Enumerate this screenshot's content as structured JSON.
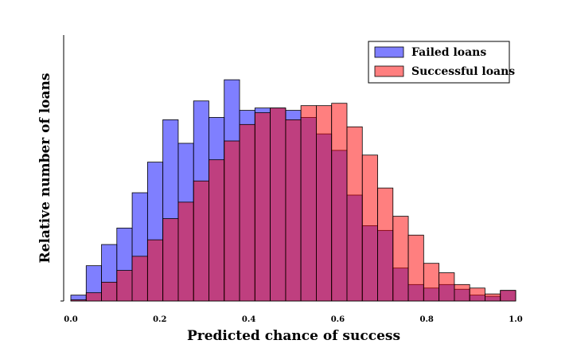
{
  "chart_data": {
    "type": "bar",
    "title": "",
    "xlabel": "Predicted chance of success",
    "ylabel": "Relative number of loans",
    "xlim": [
      0,
      1
    ],
    "ylim": [
      0,
      1.13
    ],
    "x_ticks": [
      "0.0",
      "0.2",
      "0.4",
      "0.6",
      "0.8",
      "1.0"
    ],
    "bin_edges": [
      0.0,
      0.0345,
      0.069,
      0.1034,
      0.1379,
      0.1724,
      0.2069,
      0.2414,
      0.2759,
      0.3103,
      0.3448,
      0.3793,
      0.4138,
      0.4483,
      0.4828,
      0.5172,
      0.5517,
      0.5862,
      0.6207,
      0.6552,
      0.6897,
      0.7241,
      0.7586,
      0.7931,
      0.8276,
      0.8621,
      0.8966,
      0.931,
      0.9655,
      1.0
    ],
    "grid": false,
    "legend_position": "top-right",
    "series": [
      {
        "name": "Failed loans",
        "color": "#0000ff",
        "values": [
          0.025,
          0.15,
          0.24,
          0.31,
          0.46,
          0.59,
          0.77,
          0.67,
          0.85,
          0.78,
          0.94,
          0.81,
          0.82,
          0.82,
          0.81,
          0.78,
          0.71,
          0.64,
          0.45,
          0.32,
          0.3,
          0.14,
          0.07,
          0.055,
          0.07,
          0.05,
          0.025,
          0.02,
          0.045
        ]
      },
      {
        "name": "Successful loans",
        "color": "#ff0000",
        "values": [
          0.005,
          0.035,
          0.08,
          0.13,
          0.19,
          0.26,
          0.35,
          0.42,
          0.51,
          0.6,
          0.68,
          0.75,
          0.8,
          0.82,
          0.77,
          0.83,
          0.83,
          0.84,
          0.74,
          0.62,
          0.48,
          0.36,
          0.28,
          0.16,
          0.12,
          0.07,
          0.055,
          0.03,
          0.045
        ]
      }
    ]
  }
}
